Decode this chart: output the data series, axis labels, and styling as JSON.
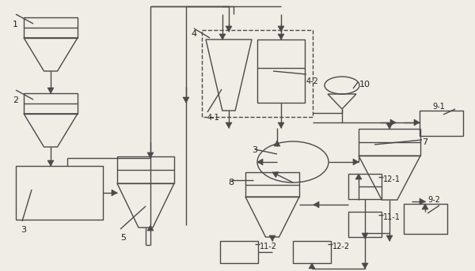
{
  "bg_color": "#f0ede6",
  "line_color": "#4a4a4a",
  "label_color": "#222222",
  "lw": 1.0,
  "fig_w": 6.0,
  "fig_h": 3.43,
  "dpi": 100
}
